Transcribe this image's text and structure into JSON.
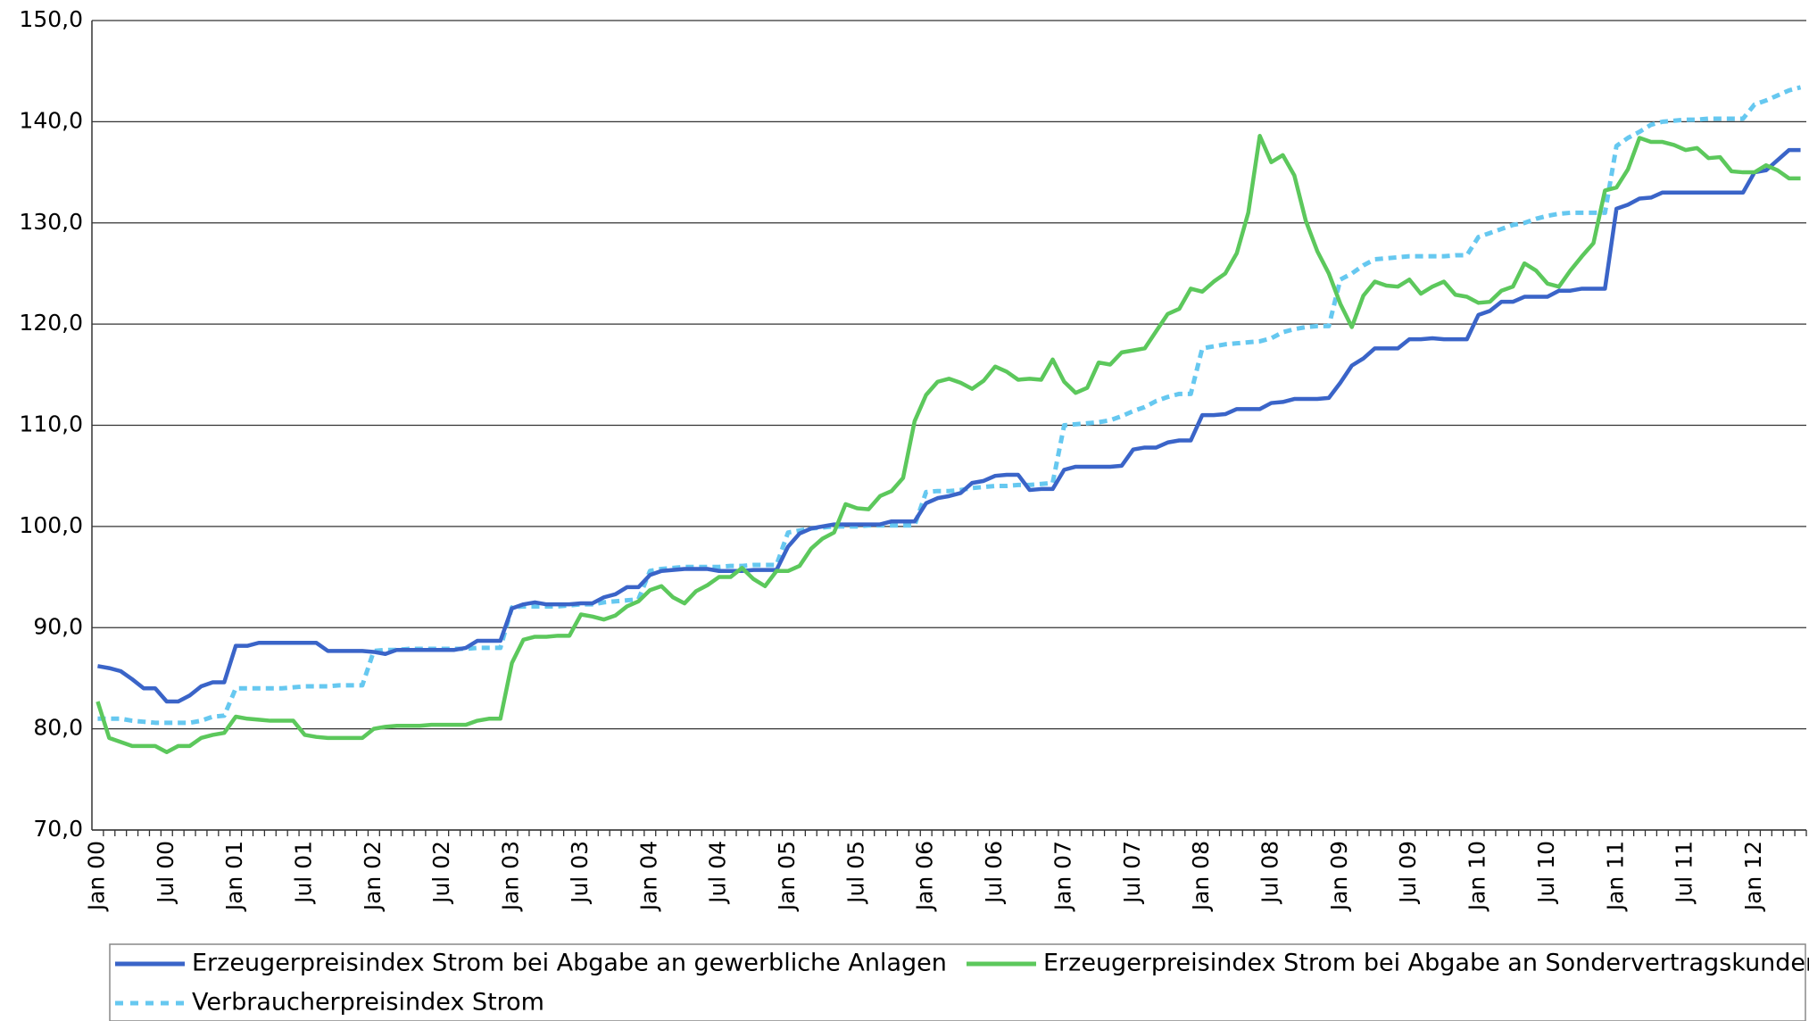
{
  "chart_data": {
    "type": "line",
    "categories": [
      "Jan 00",
      null,
      null,
      null,
      null,
      null,
      "Jul 00",
      null,
      null,
      null,
      null,
      null,
      "Jan 01",
      null,
      null,
      null,
      null,
      null,
      "Jul 01",
      null,
      null,
      null,
      null,
      null,
      "Jan 02",
      null,
      null,
      null,
      null,
      null,
      "Jul 02",
      null,
      null,
      null,
      null,
      null,
      "Jan 03",
      null,
      null,
      null,
      null,
      null,
      "Jul 03",
      null,
      null,
      null,
      null,
      null,
      "Jan 04",
      null,
      null,
      null,
      null,
      null,
      "Jul 04",
      null,
      null,
      null,
      null,
      null,
      "Jan 05",
      null,
      null,
      null,
      null,
      null,
      "Jul 05",
      null,
      null,
      null,
      null,
      null,
      "Jan 06",
      null,
      null,
      null,
      null,
      null,
      "Jul 06",
      null,
      null,
      null,
      null,
      null,
      "Jan 07",
      null,
      null,
      null,
      null,
      null,
      "Jul 07",
      null,
      null,
      null,
      null,
      null,
      "Jan 08",
      null,
      null,
      null,
      null,
      null,
      "Jul 08",
      null,
      null,
      null,
      null,
      null,
      "Jan 09",
      null,
      null,
      null,
      null,
      null,
      "Jul 09",
      null,
      null,
      null,
      null,
      null,
      "Jan 10",
      null,
      null,
      null,
      null,
      null,
      "Jul 10",
      null,
      null,
      null,
      null,
      null,
      "Jan 11",
      null,
      null,
      null,
      null,
      null,
      "Jul 11",
      null,
      null,
      null,
      null,
      null,
      "Jan 12",
      null,
      null,
      null,
      null
    ],
    "series": [
      {
        "name": "Erzeugerpreisindex Strom bei Abgabe an gewerbliche Anlagen",
        "color": "#3a64c8",
        "dash": "solid",
        "values": [
          86.2,
          86.0,
          85.7,
          84.9,
          84.0,
          84.0,
          82.7,
          82.7,
          83.3,
          84.2,
          84.6,
          84.6,
          88.2,
          88.2,
          88.5,
          88.5,
          88.5,
          88.5,
          88.5,
          88.5,
          87.7,
          87.7,
          87.7,
          87.7,
          87.6,
          87.4,
          87.8,
          87.8,
          87.8,
          87.8,
          87.8,
          87.8,
          88.0,
          88.7,
          88.7,
          88.7,
          91.9,
          92.3,
          92.5,
          92.3,
          92.3,
          92.3,
          92.4,
          92.4,
          93.0,
          93.3,
          94.0,
          94.0,
          95.2,
          95.6,
          95.7,
          95.8,
          95.8,
          95.8,
          95.6,
          95.6,
          95.6,
          95.7,
          95.7,
          95.7,
          98.0,
          99.3,
          99.8,
          100.0,
          100.2,
          100.2,
          100.2,
          100.2,
          100.2,
          100.5,
          100.5,
          100.5,
          102.3,
          102.8,
          103.0,
          103.3,
          104.3,
          104.5,
          105.0,
          105.1,
          105.1,
          103.6,
          103.7,
          103.7,
          105.6,
          105.9,
          105.9,
          105.9,
          105.9,
          106.0,
          107.6,
          107.8,
          107.8,
          108.3,
          108.5,
          108.5,
          111.0,
          111.0,
          111.1,
          111.6,
          111.6,
          111.6,
          112.2,
          112.3,
          112.6,
          112.6,
          112.6,
          112.7,
          114.2,
          115.9,
          116.6,
          117.6,
          117.6,
          117.6,
          118.5,
          118.5,
          118.6,
          118.5,
          118.5,
          118.5,
          120.9,
          121.3,
          122.2,
          122.2,
          122.7,
          122.7,
          122.7,
          123.3,
          123.3,
          123.5,
          123.5,
          123.5,
          131.4,
          131.8,
          132.4,
          132.5,
          133.0,
          133.0,
          133.0,
          133.0,
          133.0,
          133.0,
          133.0,
          133.0,
          135.0,
          135.2,
          136.2,
          137.2,
          137.2
        ]
      },
      {
        "name": "Erzeugerpreisindex Strom bei Abgabe an Sondervertragskunden",
        "color": "#5cc85c",
        "dash": "solid",
        "values": [
          82.7,
          79.1,
          78.7,
          78.3,
          78.3,
          78.3,
          77.7,
          78.3,
          78.3,
          79.1,
          79.4,
          79.6,
          81.2,
          81.0,
          80.9,
          80.8,
          80.8,
          80.8,
          79.4,
          79.2,
          79.1,
          79.1,
          79.1,
          79.1,
          80.0,
          80.2,
          80.3,
          80.3,
          80.3,
          80.4,
          80.4,
          80.4,
          80.4,
          80.8,
          81.0,
          81.0,
          86.5,
          88.8,
          89.1,
          89.1,
          89.2,
          89.2,
          91.3,
          91.1,
          90.8,
          91.2,
          92.1,
          92.6,
          93.7,
          94.1,
          93.0,
          92.4,
          93.6,
          94.2,
          95.0,
          95.0,
          95.9,
          94.8,
          94.1,
          95.6,
          95.6,
          96.1,
          97.8,
          98.8,
          99.4,
          102.2,
          101.8,
          101.7,
          103.0,
          103.5,
          104.8,
          110.4,
          113.0,
          114.3,
          114.6,
          114.2,
          113.6,
          114.4,
          115.8,
          115.3,
          114.5,
          114.6,
          114.5,
          116.5,
          114.3,
          113.2,
          113.7,
          116.2,
          116.0,
          117.2,
          117.4,
          117.6,
          119.3,
          121.0,
          121.5,
          123.5,
          123.2,
          124.2,
          125.0,
          127.0,
          131.0,
          138.6,
          136.0,
          136.7,
          134.7,
          130.2,
          127.2,
          125.0,
          122.0,
          119.7,
          122.8,
          124.2,
          123.8,
          123.7,
          124.4,
          123.0,
          123.7,
          124.2,
          122.9,
          122.7,
          122.1,
          122.2,
          123.3,
          123.7,
          126.0,
          125.3,
          124.0,
          123.7,
          125.3,
          126.7,
          128.0,
          133.2,
          133.5,
          135.3,
          138.4,
          138.0,
          138.0,
          137.7,
          137.2,
          137.4,
          136.4,
          136.5,
          135.1,
          135.0,
          135.0,
          135.7,
          135.2,
          134.4,
          134.4
        ]
      },
      {
        "name": "Verbraucherpreisindex Strom",
        "color": "#66c8f0",
        "dash": "dashed",
        "values": [
          81.0,
          81.0,
          81.0,
          80.8,
          80.7,
          80.6,
          80.6,
          80.6,
          80.6,
          80.8,
          81.2,
          81.3,
          84.0,
          84.0,
          84.0,
          84.0,
          84.0,
          84.1,
          84.2,
          84.2,
          84.2,
          84.3,
          84.3,
          84.3,
          87.7,
          87.8,
          87.8,
          87.9,
          87.9,
          87.9,
          87.9,
          87.9,
          87.9,
          88.0,
          88.0,
          88.0,
          92.0,
          92.1,
          92.1,
          92.1,
          92.1,
          92.2,
          92.3,
          92.3,
          92.5,
          92.6,
          92.7,
          92.8,
          95.6,
          95.8,
          95.9,
          96.0,
          96.0,
          96.0,
          96.0,
          96.1,
          96.1,
          96.2,
          96.2,
          96.2,
          99.4,
          99.6,
          99.8,
          99.9,
          100.0,
          100.0,
          100.0,
          100.1,
          100.1,
          100.1,
          100.1,
          100.1,
          103.4,
          103.5,
          103.5,
          103.6,
          103.8,
          103.9,
          104.0,
          104.0,
          104.1,
          104.1,
          104.2,
          104.3,
          110.0,
          110.1,
          110.2,
          110.3,
          110.5,
          110.9,
          111.4,
          111.8,
          112.4,
          112.8,
          113.1,
          113.1,
          117.6,
          117.8,
          118.0,
          118.1,
          118.2,
          118.3,
          118.6,
          119.2,
          119.5,
          119.7,
          119.8,
          119.8,
          124.4,
          125.0,
          125.8,
          126.4,
          126.5,
          126.6,
          126.7,
          126.7,
          126.7,
          126.7,
          126.8,
          126.8,
          128.6,
          129.0,
          129.4,
          129.8,
          130.0,
          130.4,
          130.7,
          130.9,
          131.0,
          131.0,
          131.0,
          131.0,
          137.6,
          138.4,
          139.0,
          139.7,
          140.0,
          140.1,
          140.2,
          140.2,
          140.3,
          140.3,
          140.3,
          140.3,
          141.7,
          142.1,
          142.6,
          143.1,
          143.4
        ]
      }
    ],
    "ylim": [
      70,
      150
    ],
    "yticks": [
      {
        "value": 70,
        "label": "70,0"
      },
      {
        "value": 80,
        "label": "80,0"
      },
      {
        "value": 90,
        "label": "90,0"
      },
      {
        "value": 100,
        "label": "100,0"
      },
      {
        "value": 110,
        "label": "110,0"
      },
      {
        "value": 120,
        "label": "120,0"
      },
      {
        "value": 130,
        "label": "130,0"
      },
      {
        "value": 140,
        "label": "140,0"
      },
      {
        "value": 150,
        "label": "150,0"
      }
    ],
    "grid": true,
    "legend": "bottom"
  }
}
